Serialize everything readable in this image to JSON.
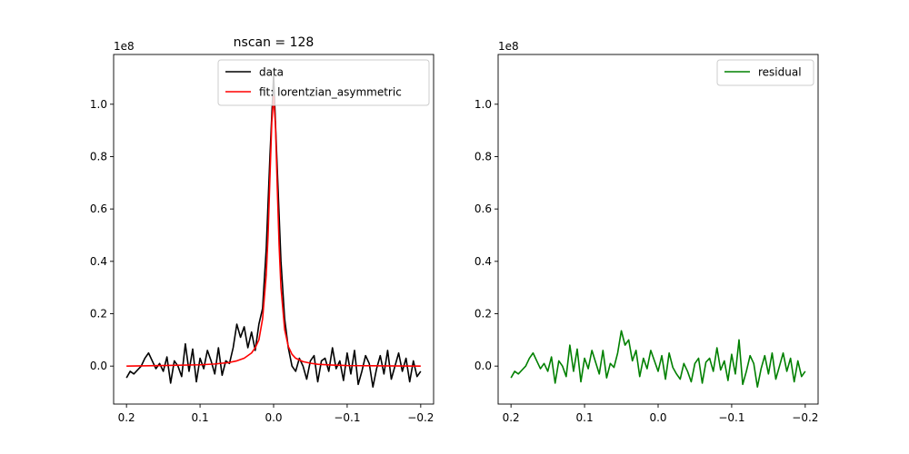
{
  "chart_data": [
    {
      "type": "line",
      "title": "nscan = 128",
      "xlabel": "",
      "ylabel": "",
      "y_offset_label": "1e8",
      "x_inverted": true,
      "xlim": [
        0.2175,
        -0.2175
      ],
      "ylim": [
        -0.145,
        1.19
      ],
      "xticks": [
        0.2,
        0.1,
        0.0,
        -0.1,
        -0.2
      ],
      "xtick_labels": [
        "0.2",
        "0.1",
        "0.0",
        "−0.1",
        "−0.2"
      ],
      "yticks": [
        0.0,
        0.2,
        0.4,
        0.6,
        0.8,
        1.0
      ],
      "ytick_labels": [
        "0.0",
        "0.2",
        "0.4",
        "0.6",
        "0.8",
        "1.0"
      ],
      "grid": false,
      "legend_position": "top-right",
      "series": [
        {
          "name": "data",
          "color": "#000000",
          "x": [
            0.2,
            0.195,
            0.19,
            0.185,
            0.18,
            0.175,
            0.17,
            0.165,
            0.16,
            0.155,
            0.15,
            0.145,
            0.14,
            0.135,
            0.13,
            0.125,
            0.12,
            0.115,
            0.11,
            0.105,
            0.1,
            0.095,
            0.09,
            0.085,
            0.08,
            0.075,
            0.07,
            0.065,
            0.06,
            0.055,
            0.05,
            0.045,
            0.04,
            0.035,
            0.03,
            0.025,
            0.02,
            0.015,
            0.01,
            0.005,
            0.0,
            -0.005,
            -0.01,
            -0.015,
            -0.02,
            -0.025,
            -0.03,
            -0.035,
            -0.04,
            -0.045,
            -0.05,
            -0.055,
            -0.06,
            -0.065,
            -0.07,
            -0.075,
            -0.08,
            -0.085,
            -0.09,
            -0.095,
            -0.1,
            -0.105,
            -0.11,
            -0.115,
            -0.12,
            -0.125,
            -0.13,
            -0.135,
            -0.14,
            -0.145,
            -0.15,
            -0.155,
            -0.16,
            -0.165,
            -0.17,
            -0.175,
            -0.18,
            -0.185,
            -0.19,
            -0.195,
            -0.2
          ],
          "y": [
            -0.045,
            -0.02,
            -0.03,
            -0.015,
            0.0,
            0.03,
            0.05,
            0.02,
            -0.01,
            0.01,
            -0.02,
            0.035,
            -0.065,
            0.02,
            0.0,
            -0.04,
            0.085,
            -0.02,
            0.065,
            -0.06,
            0.03,
            -0.01,
            0.06,
            0.02,
            -0.03,
            0.07,
            -0.035,
            0.02,
            0.01,
            0.07,
            0.16,
            0.11,
            0.15,
            0.07,
            0.13,
            0.06,
            0.16,
            0.22,
            0.45,
            0.8,
            1.11,
            0.75,
            0.4,
            0.18,
            0.07,
            0.0,
            -0.02,
            0.03,
            0.0,
            -0.05,
            0.02,
            0.04,
            -0.06,
            0.02,
            0.03,
            -0.02,
            0.07,
            -0.01,
            0.02,
            -0.055,
            0.05,
            -0.03,
            0.06,
            -0.07,
            -0.02,
            0.04,
            0.01,
            -0.08,
            -0.01,
            0.04,
            -0.03,
            0.06,
            -0.05,
            0.0,
            0.05,
            -0.02,
            0.03,
            -0.06,
            0.02,
            -0.04,
            -0.02
          ]
        },
        {
          "name": "fit: lorentzian_asymmetric",
          "color": "#ff0000",
          "x": [
            0.2,
            0.15,
            0.1,
            0.08,
            0.06,
            0.05,
            0.04,
            0.03,
            0.025,
            0.02,
            0.015,
            0.01,
            0.0075,
            0.005,
            0.0025,
            0.0,
            -0.0025,
            -0.005,
            -0.0075,
            -0.01,
            -0.015,
            -0.02,
            -0.025,
            -0.03,
            -0.04,
            -0.05,
            -0.06,
            -0.08,
            -0.1,
            -0.15,
            -0.2
          ],
          "y": [
            0.0,
            0.002,
            0.005,
            0.008,
            0.014,
            0.02,
            0.03,
            0.05,
            0.07,
            0.1,
            0.18,
            0.35,
            0.5,
            0.72,
            0.93,
            1.03,
            0.92,
            0.68,
            0.46,
            0.3,
            0.14,
            0.075,
            0.045,
            0.03,
            0.017,
            0.011,
            0.007,
            0.004,
            0.002,
            0.001,
            0.0
          ]
        }
      ]
    },
    {
      "type": "line",
      "title": "",
      "xlabel": "",
      "ylabel": "",
      "y_offset_label": "1e8",
      "x_inverted": true,
      "xlim": [
        0.2175,
        -0.2175
      ],
      "ylim": [
        -0.145,
        1.19
      ],
      "xticks": [
        0.2,
        0.1,
        0.0,
        -0.1,
        -0.2
      ],
      "xtick_labels": [
        "0.2",
        "0.1",
        "0.0",
        "−0.1",
        "−0.2"
      ],
      "yticks": [
        0.0,
        0.2,
        0.4,
        0.6,
        0.8,
        1.0
      ],
      "ytick_labels": [
        "0.0",
        "0.2",
        "0.4",
        "0.6",
        "0.8",
        "1.0"
      ],
      "grid": false,
      "legend_position": "top-right",
      "series": [
        {
          "name": "residual",
          "color": "#008000",
          "x": [
            0.2,
            0.195,
            0.19,
            0.185,
            0.18,
            0.175,
            0.17,
            0.165,
            0.16,
            0.155,
            0.15,
            0.145,
            0.14,
            0.135,
            0.13,
            0.125,
            0.12,
            0.115,
            0.11,
            0.105,
            0.1,
            0.095,
            0.09,
            0.085,
            0.08,
            0.075,
            0.07,
            0.065,
            0.06,
            0.055,
            0.05,
            0.045,
            0.04,
            0.035,
            0.03,
            0.025,
            0.02,
            0.015,
            0.01,
            0.005,
            0.0,
            -0.005,
            -0.01,
            -0.015,
            -0.02,
            -0.025,
            -0.03,
            -0.035,
            -0.04,
            -0.045,
            -0.05,
            -0.055,
            -0.06,
            -0.065,
            -0.07,
            -0.075,
            -0.08,
            -0.085,
            -0.09,
            -0.095,
            -0.1,
            -0.105,
            -0.11,
            -0.115,
            -0.12,
            -0.125,
            -0.13,
            -0.135,
            -0.14,
            -0.145,
            -0.15,
            -0.155,
            -0.16,
            -0.165,
            -0.17,
            -0.175,
            -0.18,
            -0.185,
            -0.19,
            -0.195,
            -0.2
          ],
          "y": [
            -0.045,
            -0.02,
            -0.03,
            -0.015,
            0.0,
            0.03,
            0.05,
            0.02,
            -0.01,
            0.01,
            -0.02,
            0.035,
            -0.065,
            0.02,
            0.0,
            -0.04,
            0.08,
            -0.02,
            0.065,
            -0.06,
            0.03,
            -0.01,
            0.06,
            0.015,
            -0.03,
            0.06,
            -0.045,
            0.01,
            -0.005,
            0.05,
            0.135,
            0.08,
            0.1,
            0.02,
            0.06,
            -0.04,
            0.03,
            -0.01,
            0.06,
            0.02,
            -0.02,
            0.04,
            -0.05,
            0.05,
            -0.005,
            -0.03,
            -0.05,
            0.01,
            -0.02,
            -0.06,
            0.01,
            0.03,
            -0.065,
            0.015,
            0.03,
            -0.02,
            0.07,
            -0.015,
            0.02,
            -0.055,
            0.045,
            -0.03,
            0.1,
            -0.07,
            -0.02,
            0.04,
            0.01,
            -0.08,
            -0.01,
            0.04,
            -0.03,
            0.05,
            -0.05,
            0.0,
            0.05,
            -0.02,
            0.03,
            -0.06,
            0.02,
            -0.04,
            -0.02
          ]
        }
      ]
    }
  ]
}
